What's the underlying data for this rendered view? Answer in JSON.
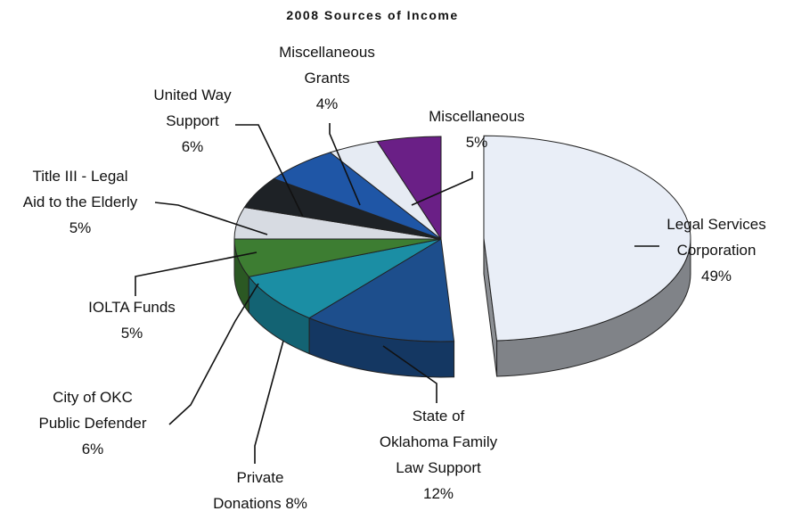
{
  "chart_data": {
    "type": "pie",
    "title": "2008 Sources of Income",
    "slices": [
      {
        "key": "lsc",
        "label_lines": [
          "Legal Services",
          "Corporation",
          "49%"
        ],
        "value": 49,
        "color": "#e9eef7"
      },
      {
        "key": "state",
        "label_lines": [
          "State of",
          "Oklahoma Family",
          "Law Support",
          "12%"
        ],
        "value": 12,
        "color": "#1d4e8c"
      },
      {
        "key": "private",
        "label_lines": [
          "Private",
          "Donations 8%"
        ],
        "value": 8,
        "color": "#1b8ea4"
      },
      {
        "key": "okc",
        "label_lines": [
          "City of OKC",
          "Public Defender",
          "6%"
        ],
        "value": 6,
        "color": "#3d7d32"
      },
      {
        "key": "iolta",
        "label_lines": [
          "IOLTA Funds",
          "5%"
        ],
        "value": 5,
        "color": "#d7dbe2"
      },
      {
        "key": "title3",
        "label_lines": [
          "Title III - Legal",
          "Aid to the Elderly",
          "5%"
        ],
        "value": 5,
        "color": "#1e2226"
      },
      {
        "key": "unitedway",
        "label_lines": [
          "United Way",
          "Support",
          "6%"
        ],
        "value": 6,
        "color": "#1f56a6"
      },
      {
        "key": "miscgrants",
        "label_lines": [
          "Miscellaneous",
          "Grants",
          "4%"
        ],
        "value": 4,
        "color": "#e6ebf3"
      },
      {
        "key": "misc",
        "label_lines": [
          "Miscellaneous",
          "5%"
        ],
        "value": 5,
        "color": "#6a1f86"
      }
    ]
  }
}
